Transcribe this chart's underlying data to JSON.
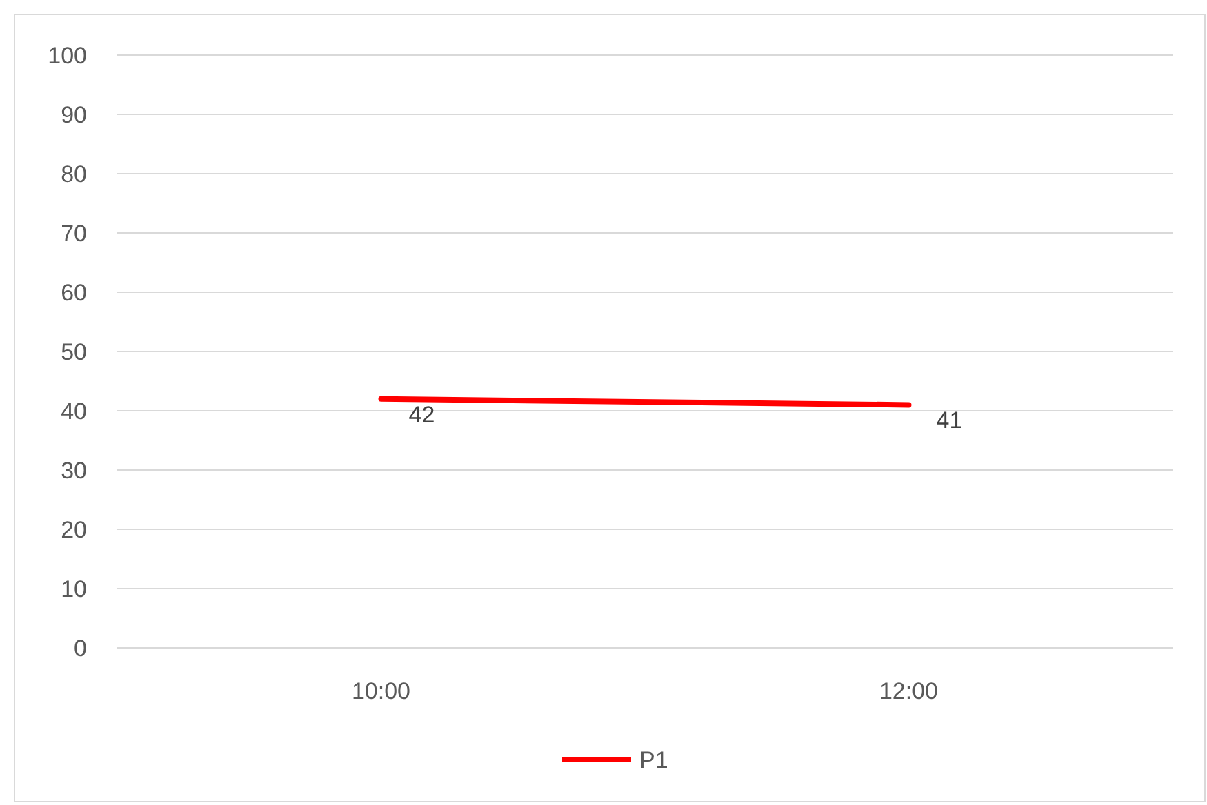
{
  "chart_data": {
    "type": "line",
    "categories": [
      "10:00",
      "12:00"
    ],
    "series": [
      {
        "name": "P1",
        "color": "#ff0000",
        "values": [
          42,
          41
        ]
      }
    ],
    "ylim": [
      0,
      100
    ],
    "yticks": [
      0,
      10,
      20,
      30,
      40,
      50,
      60,
      70,
      80,
      90,
      100
    ],
    "grid": "y",
    "legend": "bottom",
    "data_labels": true,
    "marker": "none",
    "line_style": "solid"
  }
}
